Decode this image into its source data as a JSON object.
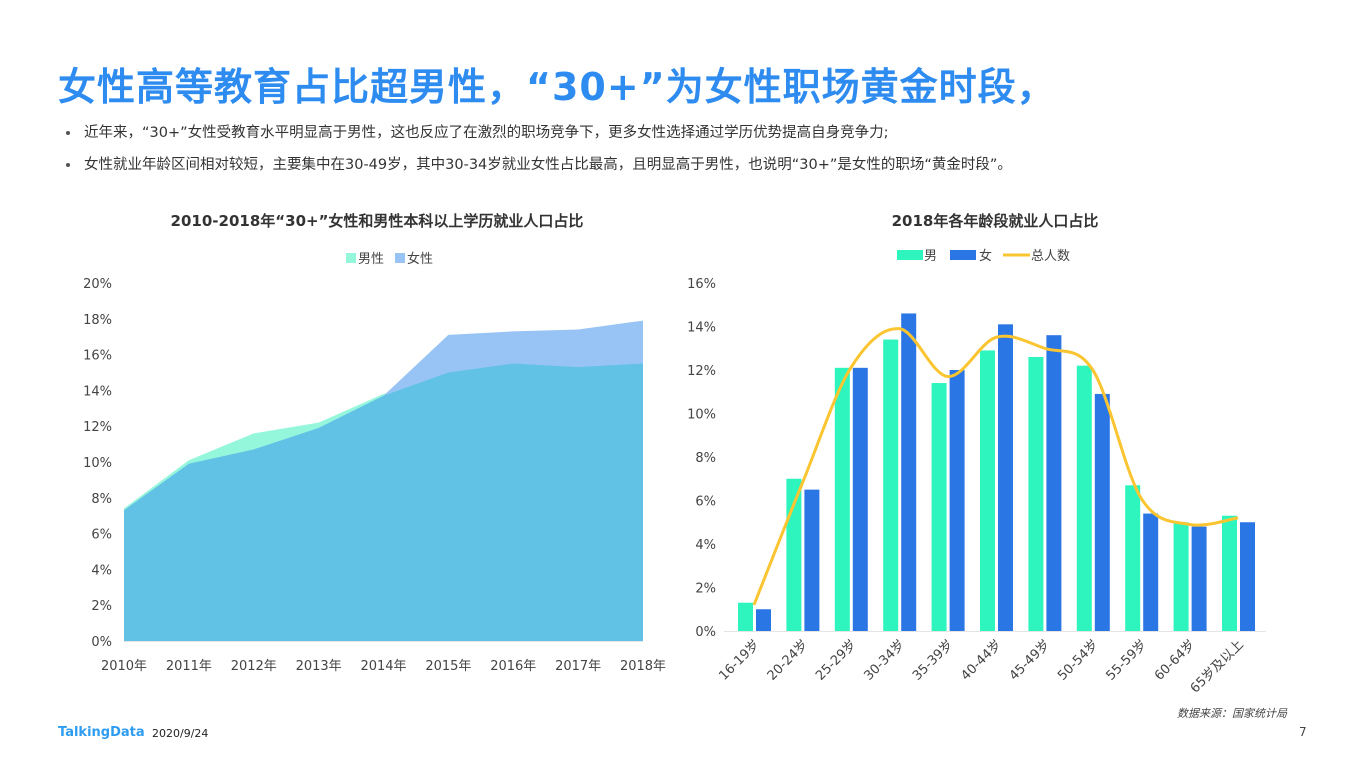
{
  "header": {
    "title": "女性高等教育占比超男性，“30+”为女性职场黄金时段，",
    "bullets": [
      "近年来，“30+”女性受教育水平明显高于男性，这也反应了在激烈的职场竞争下，更多女性选择通过学历优势提高自身竞争力;",
      "女性就业年龄区间相对较短，主要集中在30-49岁，其中30-34岁就业女性占比最高，且明显高于男性，也说明“30+”是女性的职场“黄金时段”。"
    ]
  },
  "footer": {
    "logo": "TalkingData",
    "date": "2020/9/24",
    "source": "数据来源：国家统计局",
    "page": "7"
  },
  "colors": {
    "title": "#2E8CF0",
    "male_area": "#94F7DB",
    "female_area": "#98C4F5",
    "overlap_area": "#62C2E5",
    "male_bar": "#2EF5BD",
    "female_bar": "#2B76E5",
    "total_line": "#FBC531"
  },
  "chart_data": [
    {
      "type": "area",
      "title": "2010-2018年“30+”女性和男性本科以上学历就业人口占比",
      "legend_position": "top",
      "categories": [
        "2010年",
        "2011年",
        "2012年",
        "2013年",
        "2014年",
        "2015年",
        "2016年",
        "2017年",
        "2018年"
      ],
      "series": [
        {
          "name": "男性",
          "values": [
            7.4,
            10.1,
            11.6,
            12.2,
            13.8,
            15.0,
            15.5,
            15.3,
            15.5
          ]
        },
        {
          "name": "女性",
          "values": [
            7.3,
            9.9,
            10.7,
            11.9,
            13.7,
            17.1,
            17.3,
            17.4,
            17.9
          ]
        }
      ],
      "ylim": [
        0,
        20
      ],
      "yticks": [
        "0%",
        "2%",
        "4%",
        "6%",
        "8%",
        "10%",
        "12%",
        "14%",
        "16%",
        "18%",
        "20%"
      ],
      "grid": false
    },
    {
      "type": "bar",
      "title": "2018年各年龄段就业人口占比",
      "legend_position": "top",
      "categories": [
        "16-19岁",
        "20-24岁",
        "25-29岁",
        "30-34岁",
        "35-39岁",
        "40-44岁",
        "45-49岁",
        "50-54岁",
        "55-59岁",
        "60-64岁",
        "65岁及以上"
      ],
      "series": [
        {
          "name": "男",
          "type": "bar",
          "values": [
            1.3,
            7.0,
            12.1,
            13.4,
            11.4,
            12.9,
            12.6,
            12.2,
            6.7,
            5.0,
            5.3
          ]
        },
        {
          "name": "女",
          "type": "bar",
          "values": [
            1.0,
            6.5,
            12.1,
            14.6,
            12.0,
            14.1,
            13.6,
            10.9,
            5.4,
            4.8,
            5.0
          ]
        },
        {
          "name": "总人数",
          "type": "line",
          "values": [
            1.2,
            6.8,
            12.1,
            13.9,
            11.7,
            13.5,
            13.0,
            12.0,
            6.1,
            4.9,
            5.2
          ]
        }
      ],
      "ylim": [
        0,
        16
      ],
      "yticks": [
        "0%",
        "2%",
        "4%",
        "6%",
        "8%",
        "10%",
        "12%",
        "14%",
        "16%"
      ],
      "grid": false
    }
  ]
}
